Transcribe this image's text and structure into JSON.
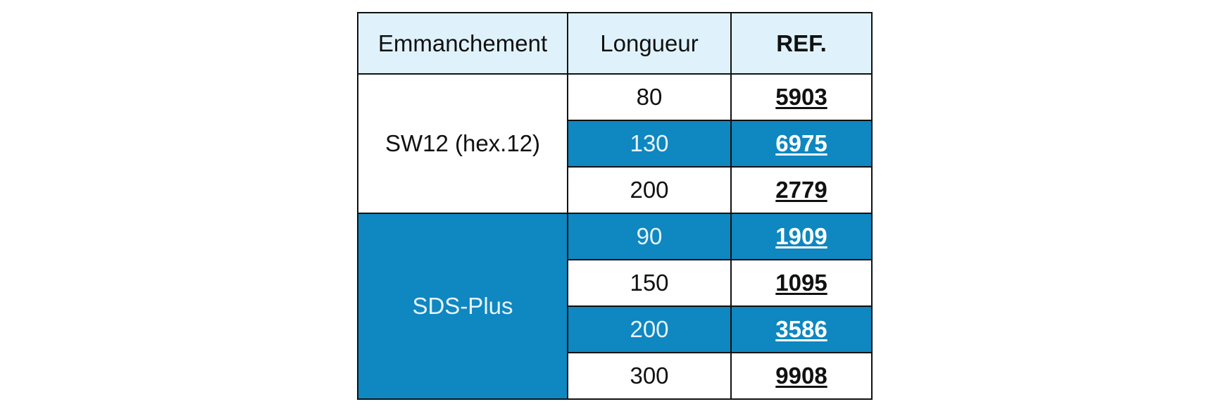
{
  "table": {
    "headers": [
      "Emmanchement",
      "Longueur",
      "REF."
    ],
    "groups": [
      {
        "shank": "SW12 (hex.12)",
        "rows": [
          {
            "length": "80",
            "ref": "5903"
          },
          {
            "length": "130",
            "ref": "6975"
          },
          {
            "length": "200",
            "ref": "2779"
          }
        ]
      },
      {
        "shank": "SDS-Plus",
        "rows": [
          {
            "length": "90",
            "ref": "1909"
          },
          {
            "length": "150",
            "ref": "1095"
          },
          {
            "length": "200",
            "ref": "3586"
          },
          {
            "length": "300",
            "ref": "9908"
          }
        ]
      }
    ]
  },
  "colors": {
    "header_bg": "#dff2fc",
    "accent_blue": "#0f87c0",
    "border": "#111111"
  }
}
